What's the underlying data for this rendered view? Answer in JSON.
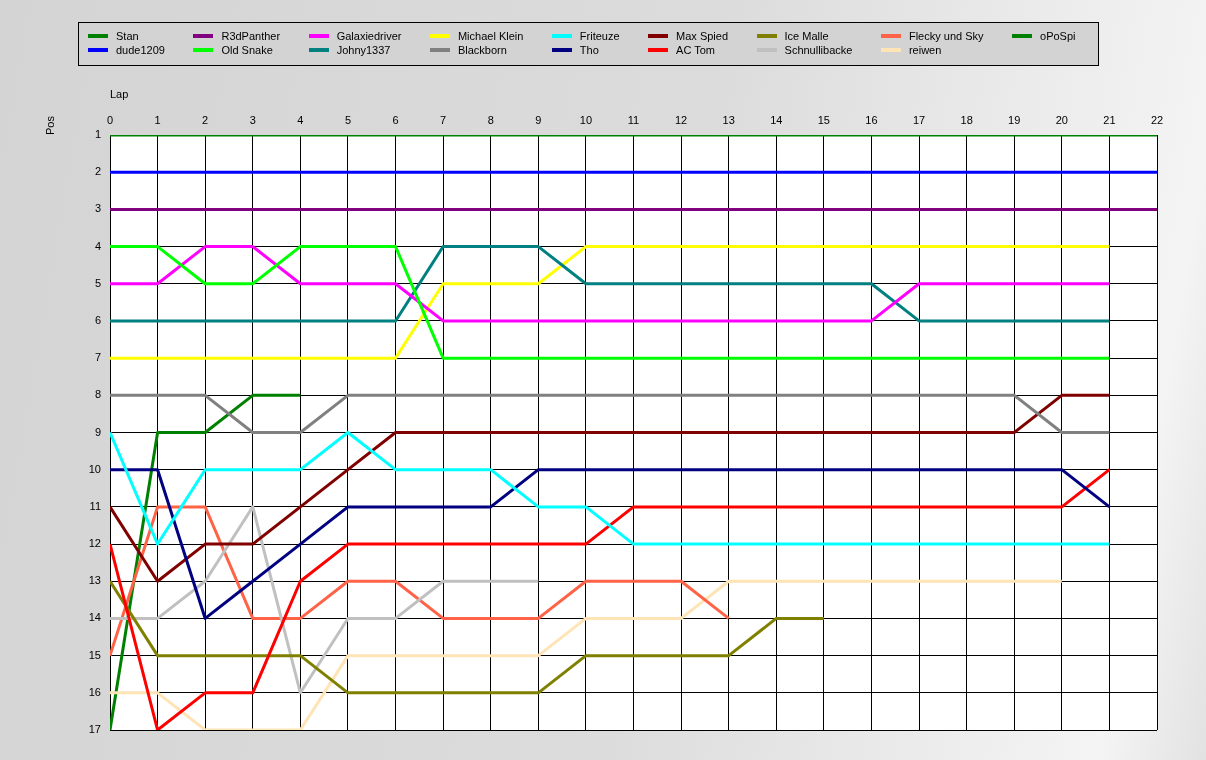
{
  "chart_data": {
    "type": "line",
    "xlabel": "Lap",
    "ylabel": "Pos",
    "x": [
      0,
      1,
      2,
      3,
      4,
      5,
      6,
      7,
      8,
      9,
      10,
      11,
      12,
      13,
      14,
      15,
      16,
      17,
      18,
      19,
      20,
      21,
      22
    ],
    "xlim": [
      0,
      22
    ],
    "xticks": [
      0,
      1,
      2,
      3,
      4,
      5,
      6,
      7,
      8,
      9,
      10,
      11,
      12,
      13,
      14,
      15,
      16,
      17,
      18,
      19,
      20,
      21,
      22
    ],
    "ylim": [
      17,
      1
    ],
    "yticks": [
      1,
      2,
      3,
      4,
      5,
      6,
      7,
      8,
      9,
      10,
      11,
      12,
      13,
      14,
      15,
      16,
      17
    ],
    "grid": true,
    "legend": "top",
    "marker": "none",
    "line_style": "solid",
    "series": [
      {
        "name": "Stan",
        "color": "#008000",
        "values": [
          1,
          1,
          1,
          1,
          1,
          1,
          1,
          1,
          1,
          1,
          1,
          1,
          1,
          1,
          1,
          1,
          1,
          1,
          1,
          1,
          1,
          1,
          1
        ]
      },
      {
        "name": "dude1209",
        "color": "#0000ff",
        "values": [
          2,
          2,
          2,
          2,
          2,
          2,
          2,
          2,
          2,
          2,
          2,
          2,
          2,
          2,
          2,
          2,
          2,
          2,
          2,
          2,
          2,
          2,
          2
        ]
      },
      {
        "name": "R3dPanther",
        "color": "#800080",
        "values": [
          3,
          3,
          3,
          3,
          3,
          3,
          3,
          3,
          3,
          3,
          3,
          3,
          3,
          3,
          3,
          3,
          3,
          3,
          3,
          3,
          3,
          3,
          3
        ]
      },
      {
        "name": "Old Snake",
        "color": "#00ff00",
        "values": [
          4,
          4,
          5,
          5,
          4,
          4,
          4,
          7,
          7,
          7,
          7,
          7,
          7,
          7,
          7,
          7,
          7,
          7,
          7,
          7,
          7,
          7,
          null
        ]
      },
      {
        "name": "Galaxiedriver",
        "color": "#ff00ff",
        "values": [
          5,
          5,
          4,
          4,
          5,
          5,
          5,
          6,
          6,
          6,
          6,
          6,
          6,
          6,
          6,
          6,
          6,
          5,
          5,
          5,
          5,
          5,
          null
        ]
      },
      {
        "name": "Johny1337",
        "color": "#008080",
        "values": [
          6,
          6,
          6,
          6,
          6,
          6,
          6,
          4,
          4,
          4,
          5,
          5,
          5,
          5,
          5,
          5,
          5,
          6,
          6,
          6,
          6,
          6,
          null
        ]
      },
      {
        "name": "Michael Klein",
        "color": "#ffff00",
        "values": [
          7,
          7,
          7,
          7,
          7,
          7,
          7,
          5,
          5,
          5,
          4,
          4,
          4,
          4,
          4,
          4,
          4,
          4,
          4,
          4,
          4,
          4,
          null
        ]
      },
      {
        "name": "Blackborn",
        "color": "#808080",
        "values": [
          8,
          8,
          8,
          9,
          9,
          8,
          8,
          8,
          8,
          8,
          8,
          8,
          8,
          8,
          8,
          8,
          8,
          8,
          8,
          8,
          9,
          9,
          null
        ]
      },
      {
        "name": "Friteuze",
        "color": "#00ffff",
        "values": [
          9,
          12,
          10,
          10,
          10,
          9,
          10,
          10,
          10,
          11,
          11,
          12,
          12,
          12,
          12,
          12,
          12,
          12,
          12,
          12,
          12,
          12,
          null
        ]
      },
      {
        "name": "Tho",
        "color": "#000080",
        "values": [
          10,
          10,
          14,
          13,
          12,
          11,
          11,
          11,
          11,
          10,
          10,
          10,
          10,
          10,
          10,
          10,
          10,
          10,
          10,
          10,
          10,
          11,
          null
        ]
      },
      {
        "name": "Max Spied",
        "color": "#800000",
        "values": [
          11,
          13,
          12,
          12,
          11,
          10,
          9,
          9,
          9,
          9,
          9,
          9,
          9,
          9,
          9,
          9,
          9,
          9,
          9,
          9,
          8,
          8,
          null
        ]
      },
      {
        "name": "AC Tom",
        "color": "#ff0000",
        "values": [
          12,
          17,
          16,
          16,
          13,
          12,
          12,
          12,
          12,
          12,
          12,
          11,
          11,
          11,
          11,
          11,
          11,
          11,
          11,
          11,
          11,
          10,
          null
        ]
      },
      {
        "name": "Ice Malle",
        "color": "#808000",
        "values": [
          13,
          15,
          15,
          15,
          15,
          16,
          16,
          16,
          16,
          16,
          15,
          15,
          15,
          15,
          14,
          14,
          null,
          null,
          null,
          null,
          null,
          null,
          null
        ]
      },
      {
        "name": "Schnullibacke",
        "color": "#c0c0c0",
        "values": [
          14,
          14,
          13,
          11,
          16,
          14,
          14,
          13,
          13,
          13,
          null,
          null,
          null,
          null,
          null,
          null,
          null,
          null,
          null,
          null,
          null,
          null,
          null
        ]
      },
      {
        "name": "Flecky und Sky",
        "color": "#ff6347",
        "values": [
          15,
          11,
          11,
          14,
          14,
          13,
          13,
          14,
          14,
          14,
          13,
          13,
          13,
          14,
          null,
          null,
          null,
          null,
          null,
          null,
          null,
          null,
          null
        ]
      },
      {
        "name": "reiwen",
        "color": "#ffe4b5",
        "values": [
          16,
          16,
          17,
          17,
          17,
          15,
          15,
          15,
          15,
          15,
          14,
          14,
          14,
          13,
          13,
          13,
          13,
          13,
          13,
          13,
          13,
          null,
          null
        ]
      },
      {
        "name": "oPoSpi",
        "color": "#008000",
        "values": [
          17,
          9,
          9,
          8,
          8,
          null,
          null,
          null,
          null,
          null,
          null,
          null,
          null,
          null,
          null,
          null,
          null,
          null,
          null,
          null,
          null,
          null,
          null
        ]
      }
    ]
  }
}
